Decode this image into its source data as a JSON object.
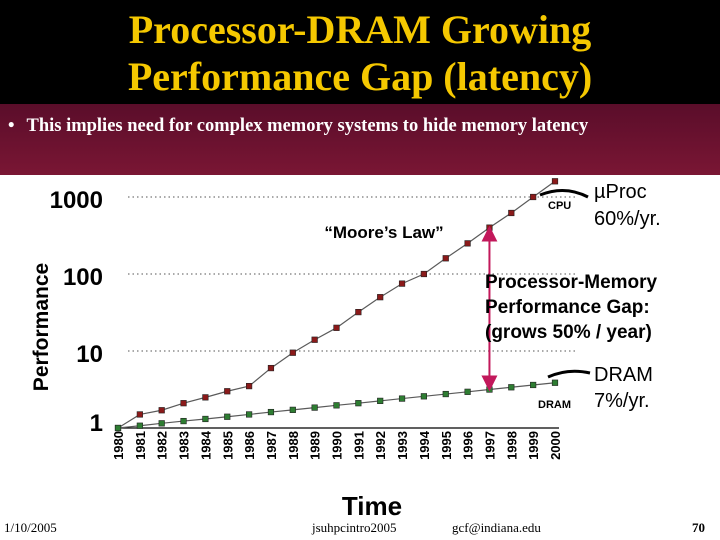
{
  "slide": {
    "title_line1": "Processor-DRAM Growing",
    "title_line2": "Performance Gap (latency)",
    "bullet": "This implies need for complex memory systems to hide memory latency",
    "footer_left": "1/10/2005",
    "footer_center": "jsuhpcintro2005",
    "footer_right": "gcf@indiana.edu",
    "page_number": "70"
  },
  "colors": {
    "title": "#f5c800",
    "cpu_marker": "#8b1a1a",
    "dram_marker": "#2e7d32",
    "gap_arrow": "#c2185b"
  },
  "chart_data": {
    "type": "line",
    "title": "",
    "xlabel": "Time",
    "ylabel": "Performance",
    "yscale": "log",
    "ylim": [
      1,
      1000
    ],
    "y_ticks": [
      "1",
      "10",
      "100",
      "1000"
    ],
    "categories": [
      "1980",
      "1981",
      "1982",
      "1983",
      "1984",
      "1985",
      "1986",
      "1987",
      "1988",
      "1989",
      "1990",
      "1991",
      "1992",
      "1993",
      "1994",
      "1995",
      "1996",
      "1997",
      "1998",
      "1999",
      "2000"
    ],
    "series": [
      {
        "name": "CPU",
        "label": "CPU",
        "color": "#8b1a1a",
        "values": [
          1.0,
          1.5,
          1.7,
          2.1,
          2.5,
          3.0,
          3.5,
          6.0,
          9.5,
          14.0,
          20.0,
          32.0,
          50.0,
          75.0,
          100.0,
          160.0,
          250.0,
          400.0,
          620.0,
          1000.0,
          1600.0
        ]
      },
      {
        "name": "DRAM",
        "label": "DRAM",
        "color": "#2e7d32",
        "values": [
          1.0,
          1.07,
          1.15,
          1.23,
          1.31,
          1.4,
          1.5,
          1.61,
          1.72,
          1.84,
          1.97,
          2.1,
          2.25,
          2.41,
          2.58,
          2.76,
          2.95,
          3.16,
          3.38,
          3.62,
          3.87
        ]
      }
    ],
    "annotations": {
      "moores_law": "“Moore’s Law”",
      "cpu_rate_line1": "µProc",
      "cpu_rate_line2": "60%/yr.",
      "gap_line1": "Processor-Memory",
      "gap_line2": "Performance Gap:",
      "gap_line3": "(grows 50% / year)",
      "dram_rate_line1": "DRAM",
      "dram_rate_line2": "7%/yr."
    }
  }
}
